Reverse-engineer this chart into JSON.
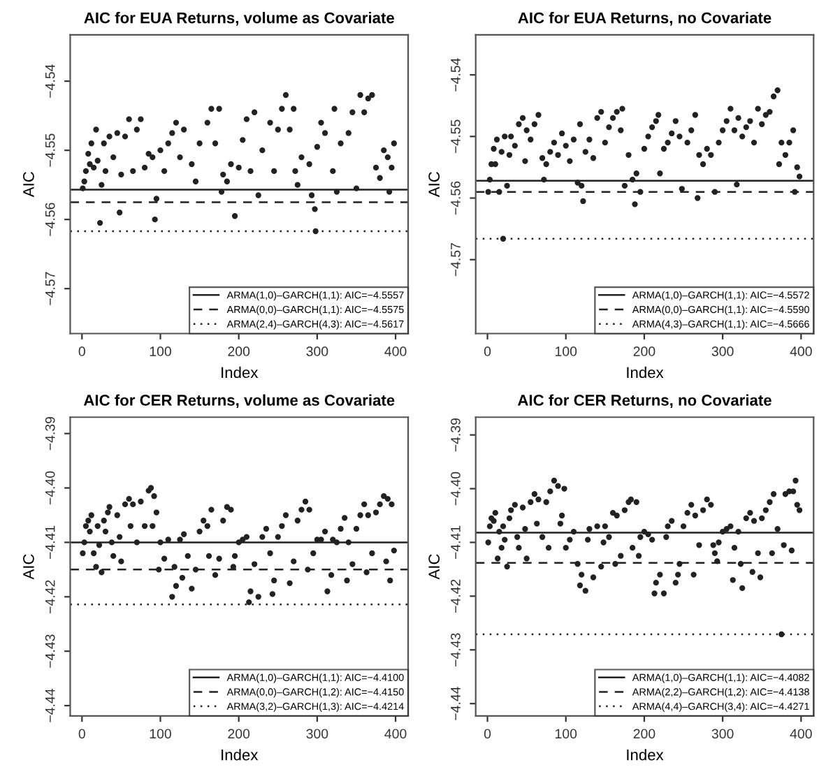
{
  "chart_data": [
    {
      "type": "scatter",
      "title": "AIC for EUA Returns, volume as Covariate",
      "xlabel": "Index",
      "ylabel": "AIC",
      "marker": "circle",
      "color": "#222222",
      "legend": "bottom right",
      "grid": false,
      "xlim": [
        -15,
        416
      ],
      "xticks": [
        0,
        100,
        200,
        300,
        400
      ],
      "ylim": [
        -4.5765,
        -4.5333
      ],
      "yticks": [
        -4.54,
        -4.55,
        -4.56,
        -4.57
      ],
      "ref_lines": [
        {
          "axis": "y",
          "value": -4.5557,
          "label": "ARMA(1,0)–GARCH(1,1): AIC=−4.5557",
          "line_style": "solid",
          "color": "#222222"
        },
        {
          "axis": "y",
          "value": -4.5575,
          "label": "ARMA(0,0)–GARCH(1,1): AIC=−4.5575",
          "line_style": "dashed",
          "color": "#222222"
        },
        {
          "axis": "y",
          "value": -4.5617,
          "label": "ARMA(2,4)–GARCH(4,3): AIC=−4.5617",
          "line_style": "dotted",
          "color": "#222222"
        }
      ],
      "x": [
        1,
        3,
        5,
        8,
        10,
        12,
        15,
        18,
        20,
        23,
        25,
        28,
        30,
        35,
        40,
        45,
        48,
        50,
        55,
        60,
        65,
        70,
        75,
        80,
        85,
        90,
        93,
        95,
        100,
        105,
        110,
        115,
        120,
        125,
        130,
        140,
        145,
        150,
        160,
        165,
        170,
        175,
        178,
        180,
        185,
        190,
        195,
        200,
        205,
        210,
        215,
        220,
        225,
        230,
        240,
        245,
        250,
        255,
        260,
        265,
        270,
        272,
        275,
        280,
        290,
        293,
        297,
        298,
        300,
        305,
        310,
        320,
        322,
        325,
        330,
        340,
        345,
        350,
        355,
        360,
        365,
        370,
        375,
        380,
        385,
        390,
        392,
        395,
        398
      ],
      "values": [
        -4.5555,
        -4.5545,
        -4.553,
        -4.5505,
        -4.552,
        -4.549,
        -4.5525,
        -4.547,
        -4.5515,
        -4.5605,
        -4.555,
        -4.549,
        -4.553,
        -4.548,
        -4.551,
        -4.5475,
        -4.559,
        -4.5535,
        -4.548,
        -4.5455,
        -4.553,
        -4.547,
        -4.5455,
        -4.5525,
        -4.5505,
        -4.551,
        -4.56,
        -4.557,
        -4.55,
        -4.553,
        -4.549,
        -4.5475,
        -4.546,
        -4.551,
        -4.547,
        -4.552,
        -4.5545,
        -4.549,
        -4.546,
        -4.544,
        -4.549,
        -4.544,
        -4.556,
        -4.5535,
        -4.5545,
        -4.552,
        -4.5595,
        -4.5525,
        -4.5485,
        -4.5455,
        -4.553,
        -4.5445,
        -4.5565,
        -4.55,
        -4.546,
        -4.553,
        -4.547,
        -4.544,
        -4.542,
        -4.547,
        -4.544,
        -4.553,
        -4.555,
        -4.551,
        -4.552,
        -4.5565,
        -4.5585,
        -4.5617,
        -4.5495,
        -4.546,
        -4.5475,
        -4.553,
        -4.544,
        -4.556,
        -4.549,
        -4.5475,
        -4.5445,
        -4.5555,
        -4.542,
        -4.5445,
        -4.5425,
        -4.542,
        -4.5525,
        -4.554,
        -4.55,
        -4.551,
        -4.556,
        -4.5525,
        -4.549
      ]
    },
    {
      "type": "scatter",
      "title": "AIC for EUA Returns, no Covariate",
      "xlabel": "Index",
      "ylabel": "AIC",
      "marker": "circle",
      "color": "#222222",
      "legend": "bottom right",
      "grid": false,
      "xlim": [
        -15,
        416
      ],
      "xticks": [
        0,
        100,
        200,
        300,
        400
      ],
      "ylim": [
        -4.582,
        -4.5335
      ],
      "yticks": [
        -4.54,
        -4.55,
        -4.56,
        -4.57
      ],
      "ref_lines": [
        {
          "axis": "y",
          "value": -4.5572,
          "label": "ARMA(1,0)–GARCH(1,1): AIC=−4.5572",
          "line_style": "solid",
          "color": "#222222"
        },
        {
          "axis": "y",
          "value": -4.559,
          "label": "ARMA(0,0)–GARCH(1,1): AIC=−4.5590",
          "line_style": "dashed",
          "color": "#222222"
        },
        {
          "axis": "y",
          "value": -4.5666,
          "label": "ARMA(4,3)–GARCH(1,1): AIC=−4.5666",
          "line_style": "dotted",
          "color": "#222222"
        }
      ],
      "x": [
        1,
        3,
        5,
        8,
        10,
        12,
        15,
        18,
        20,
        22,
        25,
        28,
        30,
        35,
        40,
        45,
        48,
        50,
        55,
        60,
        65,
        70,
        72,
        75,
        80,
        85,
        90,
        95,
        100,
        105,
        110,
        115,
        118,
        120,
        122,
        125,
        130,
        135,
        140,
        145,
        150,
        155,
        160,
        165,
        170,
        172,
        175,
        180,
        185,
        188,
        190,
        195,
        200,
        205,
        210,
        215,
        218,
        220,
        225,
        230,
        235,
        240,
        245,
        248,
        255,
        260,
        265,
        268,
        270,
        275,
        280,
        285,
        290,
        295,
        300,
        305,
        310,
        315,
        318,
        320,
        325,
        330,
        335,
        340,
        345,
        350,
        355,
        360,
        365,
        370,
        372,
        375,
        380,
        385,
        390,
        392,
        395,
        398
      ],
      "values": [
        -4.559,
        -4.557,
        -4.5545,
        -4.552,
        -4.5545,
        -4.5505,
        -4.559,
        -4.5525,
        -4.5666,
        -4.55,
        -4.558,
        -4.553,
        -4.55,
        -4.5515,
        -4.548,
        -4.547,
        -4.554,
        -4.549,
        -4.5505,
        -4.548,
        -4.5465,
        -4.5535,
        -4.557,
        -4.5545,
        -4.5525,
        -4.551,
        -4.553,
        -4.5495,
        -4.5515,
        -4.554,
        -4.5505,
        -4.5575,
        -4.548,
        -4.558,
        -4.5605,
        -4.5525,
        -4.5505,
        -4.5535,
        -4.547,
        -4.546,
        -4.551,
        -4.5485,
        -4.547,
        -4.546,
        -4.549,
        -4.5455,
        -4.558,
        -4.553,
        -4.557,
        -4.561,
        -4.556,
        -4.559,
        -4.552,
        -4.55,
        -4.5485,
        -4.5475,
        -4.5465,
        -4.556,
        -4.552,
        -4.551,
        -4.5495,
        -4.5475,
        -4.55,
        -4.5585,
        -4.551,
        -4.549,
        -4.5465,
        -4.56,
        -4.553,
        -4.5545,
        -4.552,
        -4.553,
        -4.559,
        -4.551,
        -4.549,
        -4.5475,
        -4.5455,
        -4.549,
        -4.5578,
        -4.547,
        -4.55,
        -4.5485,
        -4.5475,
        -4.551,
        -4.5455,
        -4.548,
        -4.5465,
        -4.546,
        -4.5435,
        -4.5425,
        -4.5545,
        -4.551,
        -4.553,
        -4.551,
        -4.549,
        -4.559,
        -4.555,
        -4.5565
      ]
    },
    {
      "type": "scatter",
      "title": "AIC for CER Returns, volume as Covariate",
      "xlabel": "Index",
      "ylabel": "AIC",
      "marker": "circle",
      "color": "#222222",
      "legend": "bottom right",
      "grid": false,
      "xlim": [
        -15,
        416
      ],
      "xticks": [
        0,
        100,
        200,
        300,
        400
      ],
      "ylim": [
        -4.4419,
        -4.387
      ],
      "yticks": [
        -4.39,
        {
          "value": -4.4,
          "label": "−4.40"
        },
        -4.41,
        -4.42,
        -4.43,
        -4.44
      ],
      "ref_lines": [
        {
          "axis": "y",
          "value": -4.41,
          "label": "ARMA(1,0)–GARCH(1,1): AIC=−4.4100",
          "line_style": "solid",
          "color": "#222222"
        },
        {
          "axis": "y",
          "value": -4.415,
          "label": "ARMA(0,0)–GARCH(1,2): AIC=−4.4150",
          "line_style": "dashed",
          "color": "#222222"
        },
        {
          "axis": "y",
          "value": -4.4214,
          "label": "ARMA(3,2)–GARCH(1,3): AIC=−4.4214",
          "line_style": "dotted",
          "color": "#222222"
        }
      ],
      "x": [
        1,
        3,
        5,
        8,
        10,
        12,
        15,
        18,
        20,
        22,
        25,
        28,
        30,
        33,
        35,
        38,
        40,
        45,
        48,
        50,
        55,
        60,
        62,
        65,
        70,
        75,
        80,
        85,
        88,
        90,
        92,
        95,
        98,
        100,
        105,
        110,
        115,
        118,
        120,
        125,
        128,
        130,
        135,
        140,
        145,
        150,
        155,
        160,
        162,
        165,
        170,
        175,
        180,
        185,
        190,
        193,
        195,
        200,
        205,
        210,
        213,
        215,
        220,
        225,
        230,
        235,
        240,
        243,
        245,
        250,
        255,
        260,
        265,
        270,
        275,
        280,
        285,
        288,
        290,
        295,
        300,
        305,
        310,
        313,
        318,
        320,
        325,
        330,
        335,
        338,
        340,
        345,
        350,
        355,
        360,
        363,
        365,
        370,
        375,
        380,
        385,
        388,
        390,
        393,
        395,
        398
      ],
      "values": [
        -4.412,
        -4.41,
        -4.407,
        -4.406,
        -4.408,
        -4.405,
        -4.412,
        -4.4145,
        -4.407,
        -4.4105,
        -4.4155,
        -4.406,
        -4.408,
        -4.4045,
        -4.4035,
        -4.41,
        -4.4125,
        -4.405,
        -4.409,
        -4.4135,
        -4.403,
        -4.402,
        -4.407,
        -4.403,
        -4.41,
        -4.4025,
        -4.407,
        -4.4005,
        -4.4,
        -4.407,
        -4.4015,
        -4.4045,
        -4.415,
        -4.41,
        -4.413,
        -4.4095,
        -4.42,
        -4.4145,
        -4.418,
        -4.4095,
        -4.4165,
        -4.4085,
        -4.4125,
        -4.4185,
        -4.415,
        -4.408,
        -4.406,
        -4.407,
        -4.4125,
        -4.404,
        -4.416,
        -4.413,
        -4.406,
        -4.4035,
        -4.404,
        -4.4145,
        -4.4125,
        -4.41,
        -4.4095,
        -4.409,
        -4.421,
        -4.419,
        -4.414,
        -4.42,
        -4.409,
        -4.4075,
        -4.412,
        -4.4195,
        -4.417,
        -4.409,
        -4.407,
        -4.405,
        -4.4175,
        -4.4135,
        -4.406,
        -4.404,
        -4.4025,
        -4.415,
        -4.404,
        -4.412,
        -4.4095,
        -4.4095,
        -4.408,
        -4.419,
        -4.416,
        -4.4095,
        -4.41,
        -4.4075,
        -4.4055,
        -4.417,
        -4.41,
        -4.414,
        -4.4075,
        -4.405,
        -4.403,
        -4.4155,
        -4.405,
        -4.412,
        -4.4045,
        -4.403,
        -4.4015,
        -4.4135,
        -4.402,
        -4.417,
        -4.403,
        -4.4115
      ]
    },
    {
      "type": "scatter",
      "title": "AIC for CER Returns, no Covariate",
      "xlabel": "Index",
      "ylabel": "AIC",
      "marker": "circle",
      "color": "#222222",
      "legend": "bottom right",
      "grid": false,
      "xlim": [
        -15,
        416
      ],
      "xticks": [
        0,
        100,
        200,
        300,
        400
      ],
      "ylim": [
        -4.4423,
        -4.3867
      ],
      "yticks": [
        -4.39,
        {
          "value": -4.4,
          "label": "−4.40"
        },
        -4.41,
        -4.42,
        -4.43,
        -4.44
      ],
      "ref_lines": [
        {
          "axis": "y",
          "value": -4.4082,
          "label": "ARMA(1,0)–GARCH(1,1): AIC=−4.4082",
          "line_style": "solid",
          "color": "#222222"
        },
        {
          "axis": "y",
          "value": -4.4138,
          "label": "ARMA(2,2)–GARCH(1,2): AIC=−4.4138",
          "line_style": "dashed",
          "color": "#222222"
        },
        {
          "axis": "y",
          "value": -4.4271,
          "label": "ARMA(4,4)–GARCH(3,4): AIC=−4.4271",
          "line_style": "dotted",
          "color": "#222222"
        }
      ],
      "x": [
        1,
        3,
        5,
        8,
        10,
        13,
        15,
        18,
        20,
        22,
        25,
        28,
        30,
        35,
        38,
        40,
        45,
        48,
        50,
        55,
        60,
        63,
        65,
        70,
        75,
        78,
        80,
        85,
        90,
        93,
        95,
        98,
        100,
        105,
        110,
        115,
        118,
        120,
        125,
        128,
        130,
        135,
        140,
        145,
        148,
        150,
        155,
        160,
        163,
        165,
        170,
        175,
        180,
        183,
        185,
        190,
        193,
        195,
        200,
        205,
        210,
        213,
        215,
        220,
        225,
        228,
        230,
        235,
        240,
        243,
        245,
        250,
        255,
        260,
        263,
        265,
        270,
        275,
        280,
        285,
        288,
        290,
        293,
        295,
        300,
        305,
        310,
        313,
        315,
        320,
        323,
        325,
        330,
        335,
        338,
        340,
        345,
        348,
        350,
        355,
        360,
        363,
        365,
        370,
        375,
        378,
        380,
        385,
        388,
        390,
        393,
        395,
        398
      ],
      "values": [
        -4.41,
        -4.407,
        -4.4055,
        -4.406,
        -4.4045,
        -4.413,
        -4.408,
        -4.411,
        -4.407,
        -4.4095,
        -4.4145,
        -4.4055,
        -4.404,
        -4.403,
        -4.409,
        -4.411,
        -4.4035,
        -4.4075,
        -4.413,
        -4.4025,
        -4.401,
        -4.4065,
        -4.402,
        -4.409,
        -4.4025,
        -4.411,
        -4.4005,
        -4.3985,
        -4.3995,
        -4.4065,
        -4.405,
        -4.4,
        -4.411,
        -4.4095,
        -4.408,
        -4.414,
        -4.418,
        -4.416,
        -4.419,
        -4.4095,
        -4.4075,
        -4.4165,
        -4.407,
        -4.4145,
        -4.41,
        -4.407,
        -4.409,
        -4.4045,
        -4.414,
        -4.405,
        -4.4125,
        -4.404,
        -4.4025,
        -4.402,
        -4.411,
        -4.4025,
        -4.4125,
        -4.409,
        -4.408,
        -4.4085,
        -4.4095,
        -4.4195,
        -4.4175,
        -4.416,
        -4.4195,
        -4.409,
        -4.407,
        -4.406,
        -4.4175,
        -4.416,
        -4.414,
        -4.407,
        -4.4045,
        -4.403,
        -4.416,
        -4.405,
        -4.4105,
        -4.404,
        -4.402,
        -4.403,
        -4.4105,
        -4.412,
        -4.4135,
        -4.41,
        -4.408,
        -4.4075,
        -4.407,
        -4.417,
        -4.411,
        -4.408,
        -4.414,
        -4.4185,
        -4.4055,
        -4.4045,
        -4.4155,
        -4.406,
        -4.412,
        -4.4165,
        -4.4055,
        -4.404,
        -4.4025,
        -4.412,
        -4.401,
        -4.4075,
        -4.4271,
        -4.4105,
        -4.401,
        -4.4005,
        -4.4115,
        -4.4005,
        -4.3985,
        -4.403,
        -4.404
      ]
    }
  ]
}
